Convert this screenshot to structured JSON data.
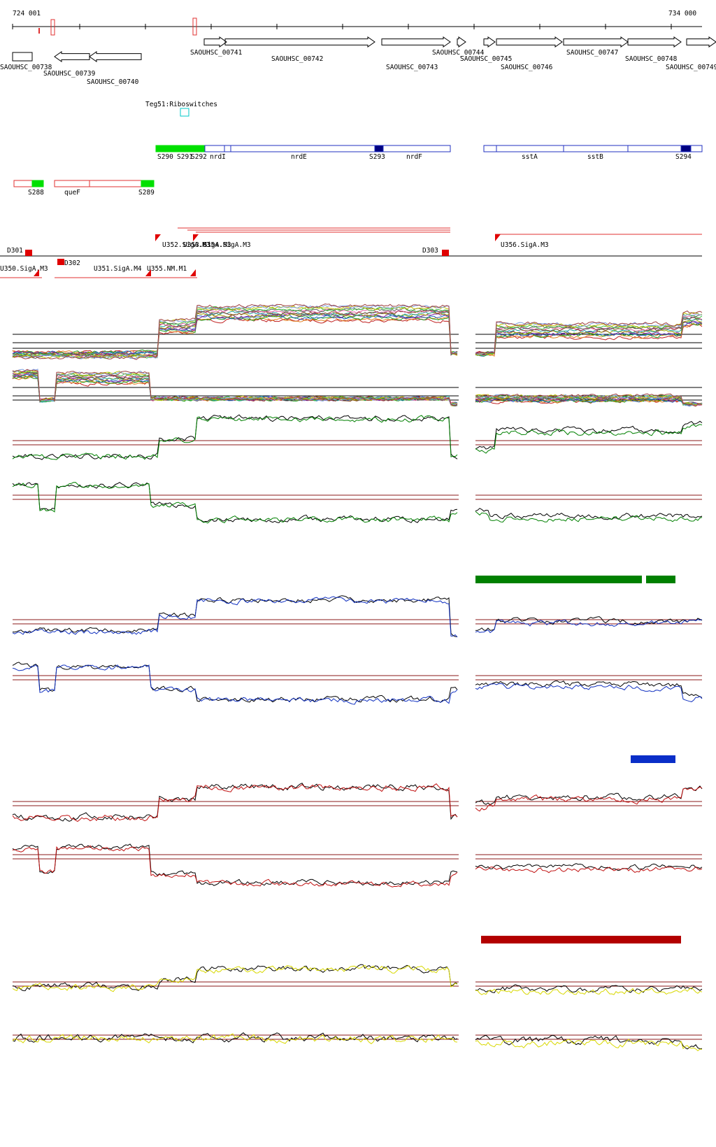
{
  "coords": {
    "start": "724 001",
    "end": "734 000"
  },
  "genes": [
    {
      "id": "SAOUHSC_00738"
    },
    {
      "id": "SAOUHSC_00739"
    },
    {
      "id": "SAOUHSC_00740"
    },
    {
      "id": "SAOUHSC_00741"
    },
    {
      "id": "SAOUHSC_00742"
    },
    {
      "id": "SAOUHSC_00743"
    },
    {
      "id": "SAOUHSC_00744"
    },
    {
      "id": "SAOUHSC_00745"
    },
    {
      "id": "SAOUHSC_00746"
    },
    {
      "id": "SAOUHSC_00747"
    },
    {
      "id": "SAOUHSC_00748"
    },
    {
      "id": "SAOUHSC_00749"
    }
  ],
  "riboswitch": {
    "label": "Teg51:Riboswitches",
    "color": "#00c8c8"
  },
  "operon_labels": [
    "S290",
    "S291",
    "S292",
    "nrdI",
    "nrdE",
    "S293",
    "nrdF",
    "sstA",
    "sstB",
    "S294",
    "S288",
    "queF",
    "S289"
  ],
  "promoters": [
    {
      "label": "D301"
    },
    {
      "label": "D302"
    },
    {
      "label": "D303"
    },
    {
      "label": "U350.SigA.M3"
    },
    {
      "label": "U351.SigA.M4"
    },
    {
      "label": "U352.SigA.M3"
    },
    {
      "label": "U353.SigA.M3"
    },
    {
      "label": "U354.SigA.M3"
    },
    {
      "label": "U355.NM.M1"
    },
    {
      "label": "U356.SigA.M3"
    }
  ],
  "track_colors": {
    "green": "#008000",
    "blue": "#1030c0",
    "red": "#c01010",
    "yellow": "#d8d800",
    "threshold": "#8b1a1a",
    "plus_strand_box": "#e03030",
    "minus_strand_box": "#2030c0"
  },
  "bars": [
    {
      "name": "green-condition-bar",
      "color": "#008000"
    },
    {
      "name": "blue-condition-bar",
      "color": "#0a2ec8"
    },
    {
      "name": "red-condition-bar",
      "color": "#b30000"
    }
  ]
}
